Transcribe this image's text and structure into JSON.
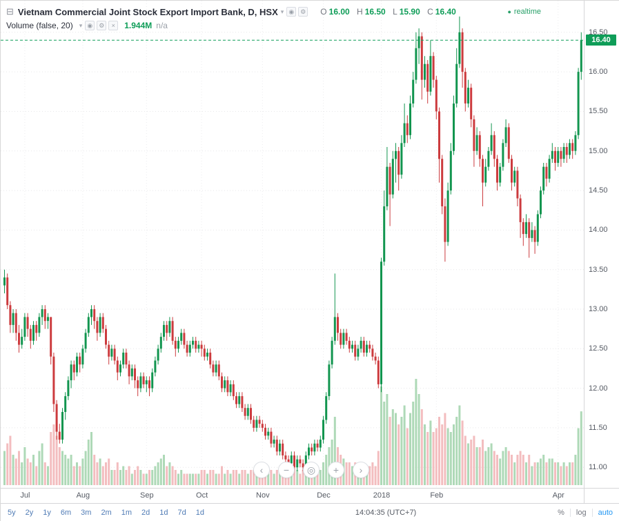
{
  "header": {
    "symbol_icon": "⊟",
    "symbol_title": "Vietnam Commercial Joint Stock Export Import Bank, D, HSX",
    "caret": "▾",
    "ohlc": {
      "o_label": "O",
      "o": "16.00",
      "h_label": "H",
      "h": "16.50",
      "l_label": "L",
      "l": "15.90",
      "c_label": "C",
      "c": "16.40"
    },
    "realtime": {
      "dot": "●",
      "label": "realtime"
    },
    "volume_legend": {
      "title": "Volume (false, 20)",
      "caret": "▾",
      "value": "1.944M",
      "na": "n/a"
    }
  },
  "legend_icons": {
    "eye": "◉",
    "gear": "⚙",
    "close": "×"
  },
  "price_axis": {
    "labels": [
      "16.50",
      "16.00",
      "15.50",
      "15.00",
      "14.50",
      "14.00",
      "13.50",
      "13.00",
      "12.50",
      "12.00",
      "11.50",
      "11.00"
    ],
    "last_price_label": "16.40"
  },
  "time_axis": {
    "ticks": [
      {
        "label": "Jul",
        "i": 7
      },
      {
        "label": "Aug",
        "i": 27
      },
      {
        "label": "Sep",
        "i": 49
      },
      {
        "label": "Oct",
        "i": 68
      },
      {
        "label": "Nov",
        "i": 89
      },
      {
        "label": "Dec",
        "i": 110
      },
      {
        "label": "2018",
        "i": 130
      },
      {
        "label": "Feb",
        "i": 149
      },
      {
        "label": "Apr",
        "i": 191
      }
    ]
  },
  "nav_buttons": [
    {
      "name": "chevron-left",
      "glyph": "‹"
    },
    {
      "name": "zoom-out",
      "glyph": "−"
    },
    {
      "name": "reset-view",
      "glyph": "◎"
    },
    {
      "name": "zoom-in",
      "glyph": "+"
    },
    {
      "name": "chevron-right",
      "glyph": "›"
    }
  ],
  "toolbar": {
    "ranges": [
      "5y",
      "2y",
      "1y",
      "6m",
      "3m",
      "2m",
      "1m",
      "2d",
      "1d",
      "7d",
      "1d"
    ],
    "clock": "14:04:35 (UTC+7)",
    "percent_label": "%",
    "log_label": "log",
    "auto_label": "auto"
  },
  "colors": {
    "up": "#12954f",
    "down": "#cc3b3e",
    "vol_up": "#aed9b7",
    "vol_down": "#f3bdbf",
    "accent_green": "#0f9d58",
    "badge_bg": "#0f9d58"
  },
  "chart_data": {
    "type": "candlestick",
    "title": "Vietnam Commercial Joint Stock Export Import Bank, D, HSX",
    "interval": "D",
    "current_ohlc": {
      "open": 16.0,
      "high": 16.5,
      "low": 15.9,
      "close": 16.4
    },
    "current_volume": "1.944M",
    "last_price": 16.4,
    "ylim": [
      10.74,
      16.9
    ],
    "price_ticks": [
      11.0,
      11.5,
      12.0,
      12.5,
      13.0,
      13.5,
      14.0,
      14.5,
      15.0,
      15.5,
      16.0,
      16.5
    ],
    "x_months": [
      "Jul",
      "Aug",
      "Sep",
      "Oct",
      "Nov",
      "Dec",
      "2018",
      "Feb",
      "Apr"
    ],
    "grid": true,
    "legend_position": "top-left",
    "candles": [
      [
        13.3,
        13.5,
        13.2,
        13.4
      ],
      [
        13.4,
        13.45,
        13.0,
        13.05
      ],
      [
        13.05,
        13.1,
        12.7,
        12.8
      ],
      [
        12.8,
        13.0,
        12.7,
        12.95
      ],
      [
        12.95,
        13.0,
        12.6,
        12.7
      ],
      [
        12.7,
        12.8,
        12.45,
        12.55
      ],
      [
        12.55,
        12.75,
        12.5,
        12.65
      ],
      [
        12.65,
        12.95,
        12.6,
        12.9
      ],
      [
        12.9,
        12.95,
        12.65,
        12.75
      ],
      [
        12.75,
        12.8,
        12.5,
        12.6
      ],
      [
        12.6,
        12.85,
        12.55,
        12.8
      ],
      [
        12.8,
        12.85,
        12.6,
        12.7
      ],
      [
        12.7,
        12.95,
        12.65,
        12.9
      ],
      [
        12.9,
        13.05,
        12.8,
        13.0
      ],
      [
        13.0,
        13.05,
        12.75,
        12.85
      ],
      [
        12.85,
        12.95,
        12.75,
        12.9
      ],
      [
        12.9,
        12.9,
        12.3,
        12.4
      ],
      [
        12.4,
        12.45,
        11.7,
        11.8
      ],
      [
        11.8,
        11.85,
        11.35,
        11.45
      ],
      [
        11.45,
        11.55,
        11.3,
        11.35
      ],
      [
        11.35,
        11.75,
        11.3,
        11.7
      ],
      [
        11.7,
        11.95,
        11.6,
        11.9
      ],
      [
        11.9,
        12.15,
        11.85,
        12.1
      ],
      [
        12.1,
        12.35,
        12.0,
        12.3
      ],
      [
        12.3,
        12.35,
        12.1,
        12.2
      ],
      [
        12.2,
        12.45,
        12.15,
        12.4
      ],
      [
        12.4,
        12.45,
        12.2,
        12.3
      ],
      [
        12.3,
        12.55,
        12.25,
        12.5
      ],
      [
        12.5,
        12.75,
        12.45,
        12.7
      ],
      [
        12.7,
        12.95,
        12.65,
        12.9
      ],
      [
        12.9,
        13.05,
        12.8,
        13.0
      ],
      [
        13.0,
        13.05,
        12.75,
        12.85
      ],
      [
        12.85,
        12.9,
        12.6,
        12.7
      ],
      [
        12.7,
        12.95,
        12.65,
        12.9
      ],
      [
        12.9,
        12.95,
        12.7,
        12.75
      ],
      [
        12.75,
        12.8,
        12.5,
        12.55
      ],
      [
        12.55,
        12.6,
        12.3,
        12.4
      ],
      [
        12.4,
        12.55,
        12.35,
        12.5
      ],
      [
        12.5,
        12.55,
        12.3,
        12.35
      ],
      [
        12.35,
        12.4,
        12.1,
        12.2
      ],
      [
        12.2,
        12.35,
        12.15,
        12.3
      ],
      [
        12.3,
        12.5,
        12.25,
        12.45
      ],
      [
        12.45,
        12.5,
        12.25,
        12.3
      ],
      [
        12.3,
        12.35,
        12.05,
        12.15
      ],
      [
        12.15,
        12.3,
        12.1,
        12.25
      ],
      [
        12.25,
        12.3,
        12.0,
        12.1
      ],
      [
        12.1,
        12.15,
        11.9,
        12.0
      ],
      [
        12.0,
        12.2,
        11.95,
        12.15
      ],
      [
        12.15,
        12.2,
        12.0,
        12.05
      ],
      [
        12.05,
        12.15,
        11.95,
        12.1
      ],
      [
        12.1,
        12.15,
        11.9,
        12.0
      ],
      [
        12.0,
        12.25,
        11.95,
        12.2
      ],
      [
        12.2,
        12.4,
        12.15,
        12.35
      ],
      [
        12.35,
        12.55,
        12.3,
        12.5
      ],
      [
        12.5,
        12.7,
        12.45,
        12.65
      ],
      [
        12.65,
        12.85,
        12.6,
        12.8
      ],
      [
        12.8,
        12.85,
        12.6,
        12.7
      ],
      [
        12.7,
        12.9,
        12.65,
        12.85
      ],
      [
        12.85,
        12.9,
        12.55,
        12.6
      ],
      [
        12.6,
        12.65,
        12.4,
        12.5
      ],
      [
        12.5,
        12.65,
        12.45,
        12.6
      ],
      [
        12.6,
        12.75,
        12.55,
        12.7
      ],
      [
        12.7,
        12.75,
        12.5,
        12.55
      ],
      [
        12.55,
        12.6,
        12.4,
        12.45
      ],
      [
        12.45,
        12.6,
        12.4,
        12.55
      ],
      [
        12.55,
        12.65,
        12.5,
        12.6
      ],
      [
        12.6,
        12.65,
        12.45,
        12.5
      ],
      [
        12.5,
        12.6,
        12.45,
        12.55
      ],
      [
        12.55,
        12.6,
        12.4,
        12.5
      ],
      [
        12.5,
        12.55,
        12.35,
        12.4
      ],
      [
        12.4,
        12.5,
        12.35,
        12.45
      ],
      [
        12.45,
        12.5,
        12.25,
        12.3
      ],
      [
        12.3,
        12.35,
        12.15,
        12.2
      ],
      [
        12.2,
        12.35,
        12.15,
        12.3
      ],
      [
        12.3,
        12.35,
        12.1,
        12.15
      ],
      [
        12.15,
        12.2,
        11.95,
        12.0
      ],
      [
        12.0,
        12.15,
        11.95,
        12.1
      ],
      [
        12.1,
        12.15,
        11.9,
        11.95
      ],
      [
        11.95,
        12.1,
        11.9,
        12.05
      ],
      [
        12.05,
        12.1,
        11.85,
        11.9
      ],
      [
        11.9,
        11.95,
        11.75,
        11.8
      ],
      [
        11.8,
        11.95,
        11.75,
        11.9
      ],
      [
        11.9,
        11.95,
        11.7,
        11.75
      ],
      [
        11.75,
        11.8,
        11.6,
        11.65
      ],
      [
        11.65,
        11.8,
        11.6,
        11.75
      ],
      [
        11.75,
        11.8,
        11.55,
        11.6
      ],
      [
        11.6,
        11.65,
        11.45,
        11.5
      ],
      [
        11.5,
        11.65,
        11.45,
        11.6
      ],
      [
        11.6,
        11.65,
        11.5,
        11.55
      ],
      [
        11.55,
        11.6,
        11.45,
        11.5
      ],
      [
        11.5,
        11.55,
        11.35,
        11.4
      ],
      [
        11.4,
        11.5,
        11.35,
        11.45
      ],
      [
        11.45,
        11.5,
        11.25,
        11.3
      ],
      [
        11.3,
        11.4,
        11.25,
        11.35
      ],
      [
        11.35,
        11.4,
        11.15,
        11.2
      ],
      [
        11.2,
        11.35,
        11.15,
        11.3
      ],
      [
        11.3,
        11.35,
        11.1,
        11.15
      ],
      [
        11.15,
        11.2,
        11.05,
        11.1
      ],
      [
        11.1,
        11.15,
        11.0,
        11.05
      ],
      [
        11.05,
        11.2,
        11.0,
        11.15
      ],
      [
        11.15,
        11.2,
        10.95,
        11.0
      ],
      [
        11.0,
        11.15,
        10.95,
        11.1
      ],
      [
        11.1,
        11.15,
        11.0,
        11.05
      ],
      [
        11.05,
        11.1,
        10.95,
        11.0
      ],
      [
        11.0,
        11.2,
        10.95,
        11.15
      ],
      [
        11.15,
        11.3,
        11.1,
        11.25
      ],
      [
        11.25,
        11.3,
        11.15,
        11.2
      ],
      [
        11.2,
        11.35,
        11.15,
        11.3
      ],
      [
        11.3,
        11.35,
        11.2,
        11.25
      ],
      [
        11.25,
        11.4,
        11.2,
        11.35
      ],
      [
        11.35,
        11.65,
        11.3,
        11.6
      ],
      [
        11.6,
        11.95,
        11.55,
        11.9
      ],
      [
        11.9,
        12.35,
        11.85,
        12.3
      ],
      [
        12.3,
        12.65,
        12.25,
        12.6
      ],
      [
        12.6,
        13.45,
        12.55,
        12.9
      ],
      [
        12.9,
        12.95,
        12.6,
        12.7
      ],
      [
        12.7,
        12.75,
        12.5,
        12.55
      ],
      [
        12.55,
        12.75,
        12.5,
        12.7
      ],
      [
        12.7,
        12.75,
        12.55,
        12.6
      ],
      [
        12.6,
        12.65,
        12.45,
        12.5
      ],
      [
        12.5,
        12.6,
        12.45,
        12.55
      ],
      [
        12.55,
        12.6,
        12.35,
        12.4
      ],
      [
        12.4,
        12.55,
        12.35,
        12.5
      ],
      [
        12.5,
        12.65,
        12.45,
        12.6
      ],
      [
        12.6,
        12.65,
        12.4,
        12.45
      ],
      [
        12.45,
        12.6,
        12.4,
        12.55
      ],
      [
        12.55,
        12.6,
        12.45,
        12.5
      ],
      [
        12.5,
        12.55,
        12.35,
        12.4
      ],
      [
        12.4,
        12.45,
        12.3,
        12.35
      ],
      [
        12.35,
        12.4,
        12.0,
        12.05
      ],
      [
        12.05,
        13.65,
        11.95,
        13.6
      ],
      [
        13.6,
        14.5,
        13.55,
        14.3
      ],
      [
        14.3,
        15.05,
        14.25,
        14.8
      ],
      [
        14.8,
        14.85,
        14.05,
        14.45
      ],
      [
        14.45,
        15.0,
        14.4,
        14.9
      ],
      [
        14.9,
        15.1,
        14.6,
        15.0
      ],
      [
        15.0,
        15.05,
        14.5,
        14.7
      ],
      [
        14.7,
        15.2,
        14.65,
        15.1
      ],
      [
        15.1,
        15.6,
        15.05,
        15.35
      ],
      [
        15.35,
        15.45,
        15.1,
        15.2
      ],
      [
        15.2,
        15.7,
        15.15,
        15.6
      ],
      [
        15.6,
        16.0,
        15.55,
        15.9
      ],
      [
        15.9,
        16.5,
        15.85,
        16.3
      ],
      [
        16.3,
        16.55,
        16.1,
        16.45
      ],
      [
        16.45,
        16.5,
        15.65,
        15.9
      ],
      [
        15.9,
        16.2,
        15.8,
        16.1
      ],
      [
        16.1,
        16.15,
        15.6,
        15.75
      ],
      [
        15.75,
        16.4,
        15.7,
        16.2
      ],
      [
        16.2,
        16.25,
        15.8,
        15.9
      ],
      [
        15.9,
        15.95,
        15.4,
        15.5
      ],
      [
        15.5,
        15.55,
        14.6,
        14.9
      ],
      [
        14.9,
        14.95,
        14.2,
        14.3
      ],
      [
        14.3,
        14.4,
        13.6,
        13.85
      ],
      [
        13.85,
        14.6,
        13.8,
        14.5
      ],
      [
        14.5,
        15.1,
        14.45,
        15.0
      ],
      [
        15.0,
        15.7,
        14.95,
        15.6
      ],
      [
        15.6,
        16.3,
        15.55,
        16.1
      ],
      [
        16.1,
        16.7,
        16.05,
        16.5
      ],
      [
        16.5,
        16.55,
        15.8,
        16.0
      ],
      [
        16.0,
        16.05,
        15.5,
        15.6
      ],
      [
        15.6,
        15.9,
        15.55,
        15.8
      ],
      [
        15.8,
        15.85,
        15.3,
        15.4
      ],
      [
        15.4,
        15.45,
        14.8,
        15.0
      ],
      [
        15.0,
        15.3,
        14.95,
        15.2
      ],
      [
        15.2,
        15.25,
        14.8,
        14.9
      ],
      [
        14.9,
        14.95,
        14.3,
        14.6
      ],
      [
        14.6,
        14.9,
        14.55,
        14.8
      ],
      [
        14.8,
        15.05,
        14.75,
        15.0
      ],
      [
        15.0,
        15.35,
        14.95,
        15.2
      ],
      [
        15.2,
        15.25,
        14.8,
        14.9
      ],
      [
        14.9,
        14.95,
        14.5,
        14.6
      ],
      [
        14.6,
        14.85,
        14.55,
        14.8
      ],
      [
        14.8,
        15.15,
        14.75,
        15.1
      ],
      [
        15.1,
        15.4,
        15.05,
        15.3
      ],
      [
        15.3,
        15.35,
        14.85,
        14.9
      ],
      [
        14.9,
        14.95,
        14.5,
        14.6
      ],
      [
        14.6,
        14.8,
        14.55,
        14.75
      ],
      [
        14.75,
        14.8,
        14.3,
        14.4
      ],
      [
        14.4,
        14.45,
        13.9,
        14.1
      ],
      [
        14.1,
        14.15,
        13.8,
        13.95
      ],
      [
        13.95,
        14.2,
        13.9,
        14.1
      ],
      [
        14.1,
        14.15,
        13.65,
        13.9
      ],
      [
        13.9,
        14.1,
        13.85,
        14.0
      ],
      [
        14.0,
        14.05,
        13.7,
        13.85
      ],
      [
        13.85,
        14.25,
        13.8,
        14.2
      ],
      [
        14.2,
        14.55,
        14.15,
        14.5
      ],
      [
        14.5,
        14.85,
        14.45,
        14.8
      ],
      [
        14.8,
        14.85,
        14.55,
        14.65
      ],
      [
        14.65,
        14.95,
        14.6,
        14.9
      ],
      [
        14.9,
        15.1,
        14.85,
        15.0
      ],
      [
        15.0,
        15.05,
        14.75,
        14.85
      ],
      [
        14.85,
        15.05,
        14.8,
        15.0
      ],
      [
        15.0,
        15.05,
        14.8,
        14.9
      ],
      [
        14.9,
        15.1,
        14.85,
        15.05
      ],
      [
        15.05,
        15.1,
        14.85,
        14.95
      ],
      [
        14.95,
        15.15,
        14.9,
        15.1
      ],
      [
        15.1,
        15.15,
        14.9,
        15.0
      ],
      [
        15.0,
        15.25,
        14.95,
        15.2
      ],
      [
        15.2,
        16.05,
        15.15,
        16.0
      ],
      [
        16.0,
        16.5,
        15.9,
        16.4
      ]
    ],
    "volumes": [
      0.9,
      1.1,
      1.3,
      0.8,
      0.7,
      0.9,
      0.6,
      1.0,
      0.7,
      0.6,
      0.8,
      0.5,
      0.9,
      1.1,
      0.6,
      0.5,
      1.4,
      1.6,
      1.3,
      1.0,
      0.9,
      0.8,
      0.7,
      0.8,
      0.5,
      0.6,
      0.5,
      0.7,
      0.9,
      1.2,
      1.4,
      0.8,
      0.6,
      0.7,
      0.5,
      0.6,
      0.7,
      0.4,
      0.4,
      0.6,
      0.4,
      0.5,
      0.4,
      0.5,
      0.3,
      0.4,
      0.5,
      0.4,
      0.3,
      0.3,
      0.4,
      0.4,
      0.5,
      0.6,
      0.7,
      0.8,
      0.5,
      0.6,
      0.5,
      0.4,
      0.3,
      0.4,
      0.3,
      0.3,
      0.3,
      0.3,
      0.3,
      0.3,
      0.4,
      0.4,
      0.3,
      0.4,
      0.4,
      0.3,
      0.3,
      0.5,
      0.3,
      0.4,
      0.3,
      0.4,
      0.4,
      0.3,
      0.4,
      0.4,
      0.3,
      0.4,
      0.4,
      0.3,
      0.3,
      0.3,
      0.4,
      0.3,
      0.4,
      0.3,
      0.4,
      0.3,
      0.4,
      0.4,
      0.4,
      0.3,
      0.5,
      0.4,
      0.3,
      0.4,
      0.4,
      0.4,
      0.3,
      0.4,
      0.3,
      0.4,
      0.6,
      0.8,
      1.0,
      1.2,
      1.8,
      1.0,
      0.8,
      0.7,
      0.6,
      0.6,
      0.5,
      0.6,
      0.5,
      0.6,
      0.5,
      0.5,
      0.5,
      0.6,
      0.5,
      0.9,
      2.6,
      2.2,
      2.4,
      1.8,
      2.0,
      1.9,
      1.6,
      1.8,
      2.1,
      1.5,
      1.9,
      2.2,
      2.8,
      2.4,
      2.0,
      1.6,
      1.4,
      1.7,
      1.4,
      1.5,
      1.8,
      1.6,
      1.9,
      1.5,
      1.4,
      1.6,
      1.8,
      2.1,
      1.7,
      1.3,
      1.1,
      1.2,
      1.3,
      1.0,
      1.0,
      1.2,
      0.9,
      1.0,
      1.1,
      0.9,
      0.8,
      0.7,
      0.9,
      1.0,
      0.9,
      0.8,
      0.6,
      0.8,
      0.9,
      0.8,
      0.6,
      0.8,
      0.5,
      0.6,
      0.6,
      0.7,
      0.8,
      0.6,
      0.7,
      0.7,
      0.6,
      0.6,
      0.5,
      0.6,
      0.5,
      0.6,
      0.6,
      0.8,
      1.5,
      1.944
    ]
  }
}
